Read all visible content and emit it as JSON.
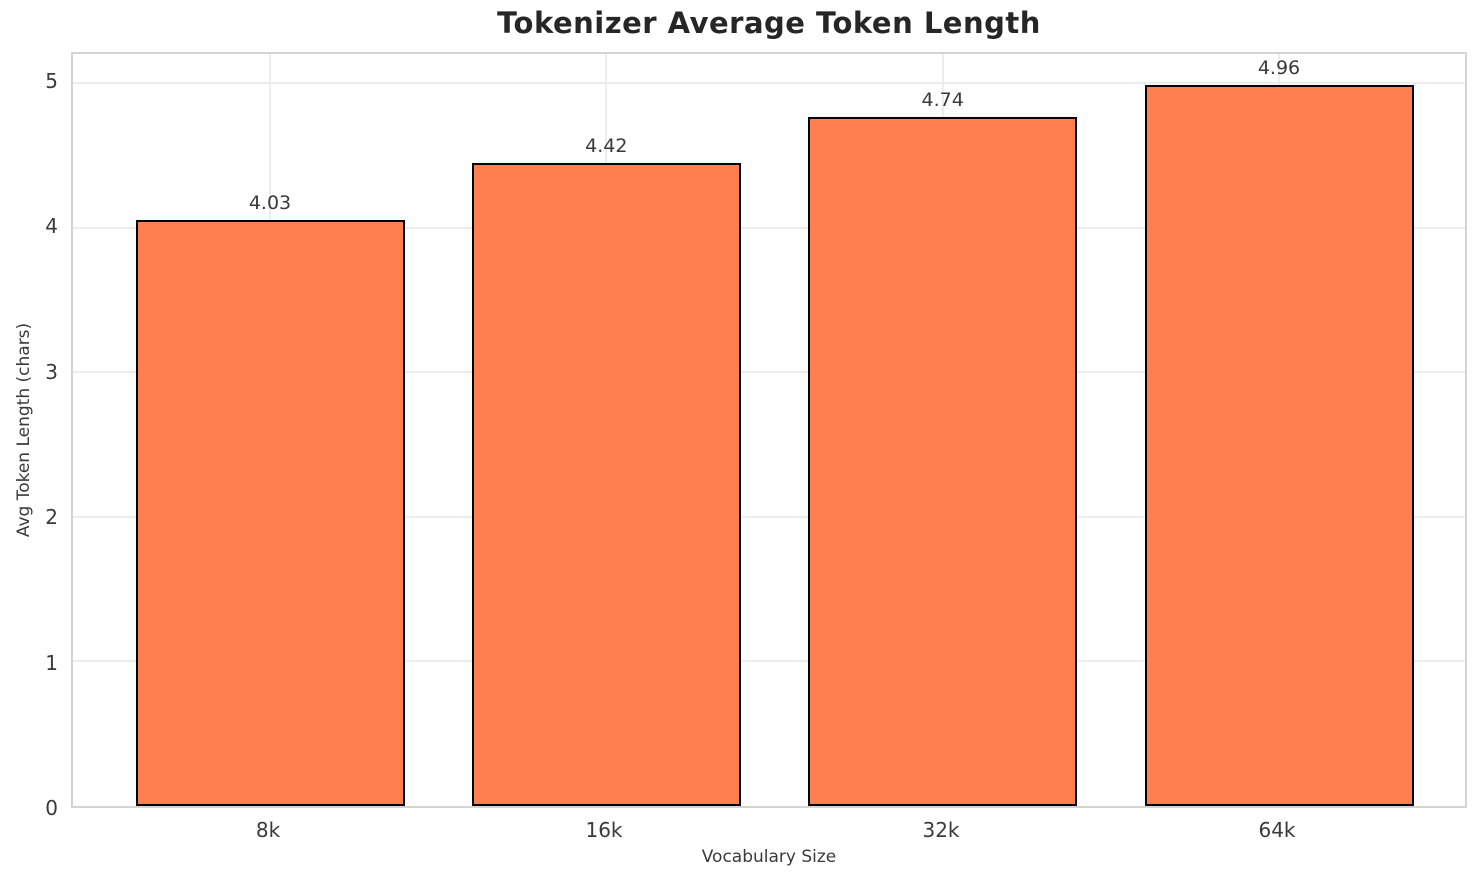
{
  "chart_data": {
    "type": "bar",
    "title": "Tokenizer Average Token Length",
    "xlabel": "Vocabulary Size",
    "ylabel": "Avg Token Length (chars)",
    "categories": [
      "8k",
      "16k",
      "32k",
      "64k"
    ],
    "values": [
      4.03,
      4.42,
      4.74,
      4.96
    ],
    "value_labels": [
      "4.03",
      "4.42",
      "4.74",
      "4.96"
    ],
    "yticks": [
      0,
      1,
      2,
      3,
      4,
      5
    ],
    "ylim": [
      0,
      5.2
    ],
    "grid": true,
    "legend": "none",
    "colors": {
      "bar_fill": "#FF7F50",
      "bar_edge": "#000000",
      "gridline": "#ececec",
      "spine": "#d4d4d4",
      "tick_text": "#3a3a3a",
      "title_text": "#262626",
      "background": "#ffffff"
    }
  }
}
